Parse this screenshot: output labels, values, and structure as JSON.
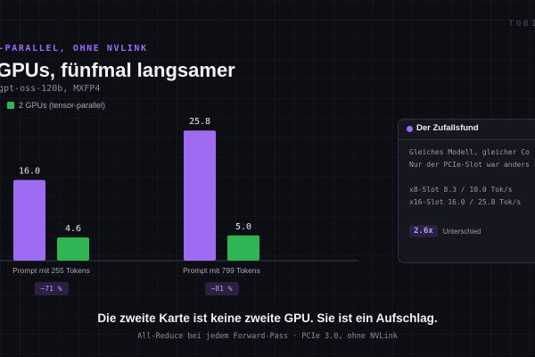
{
  "brand": "TOBI",
  "kicker": "-PARALLEL, OHNE NVLINK",
  "title": "GPUs, fünfmal langsamer",
  "subtitle": "gpt-oss-120b, MXFP4",
  "colors": {
    "series_a": "#9e6bf2",
    "series_b": "#2fb553",
    "accent": "#a06bff",
    "background": "#0d0d14"
  },
  "chart_data": {
    "type": "bar",
    "categories": [
      "Prompt mit 255 Tokens",
      "Prompt mit 799 Tokens"
    ],
    "series": [
      {
        "name": "",
        "values": [
          16.0,
          25.8
        ],
        "labels": [
          "16.0",
          "25.8"
        ]
      },
      {
        "name": "2 GPUs (tensor-parallel)",
        "values": [
          4.6,
          5.0
        ],
        "labels": [
          "4.6",
          "5.0"
        ]
      }
    ],
    "deltas": [
      "−71 %",
      "−81 %"
    ],
    "legend_position": "top-left",
    "grid": false
  },
  "card": {
    "title": "Der Zufallsfund",
    "lines": [
      "Gleiches Modell, gleicher Co",
      "Nur der PCIe-Slot war anders",
      "x8-Slot 8.3 / 10.0 Tok/s",
      "x16-Slot 16.0 / 25.8 Tok/s"
    ],
    "factor": "2.6x",
    "factor_label": "Unterschied"
  },
  "headline": "Die zweite Karte ist keine zweite GPU. Sie ist ein Aufschlag.",
  "footnote": "All-Reduce bei jedem Forward-Pass · PCIe 3.0, ohne NVLink"
}
